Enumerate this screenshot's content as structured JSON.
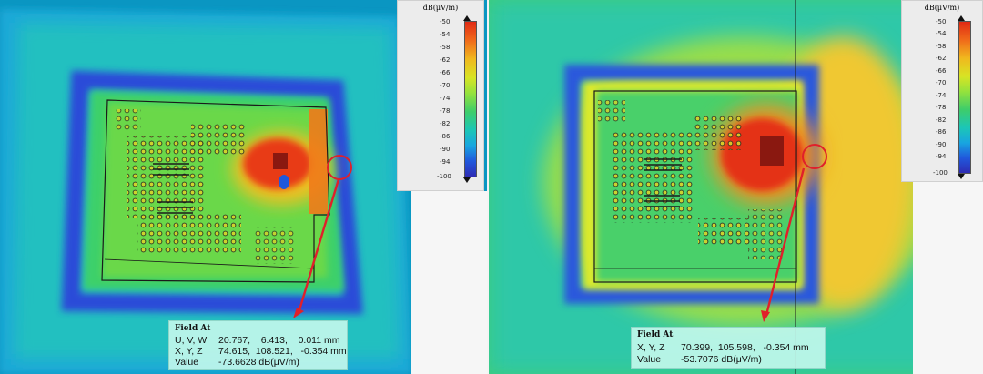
{
  "legend": {
    "unit": "dB(μV/m)",
    "ticks": [
      "-50",
      "-54",
      "-58",
      "-62",
      "-66",
      "-70",
      "-74",
      "-78",
      "-82",
      "-86",
      "-90",
      "-94",
      "-100"
    ]
  },
  "left_probe": {
    "title": "Field At",
    "rows": [
      {
        "label": "U, V, W",
        "value": "20.767,    6.413,    0.011 mm"
      },
      {
        "label": "X, Y, Z",
        "value": "74.615,  108.521,   -0.354 mm"
      },
      {
        "label": "Value",
        "value": "-73.6628 dB(μV/m)"
      }
    ]
  },
  "right_probe": {
    "title": "Field At",
    "rows": [
      {
        "label": "X, Y, Z",
        "value": "70.399,  105.598,   -0.354 mm"
      },
      {
        "label": "Value",
        "value": "-53.7076 dB(μV/m)"
      }
    ]
  },
  "colors": {
    "field_bg": "#0090b8",
    "probe_marker": "#e0202a",
    "hot": "#e02a14",
    "cold": "#2e2cb4",
    "mid": "#3ecd6a"
  },
  "icons": [
    "legend-up-arrow-icon",
    "legend-down-arrow-icon",
    "probe-marker-circle-icon",
    "pointer-arrow-icon"
  ]
}
